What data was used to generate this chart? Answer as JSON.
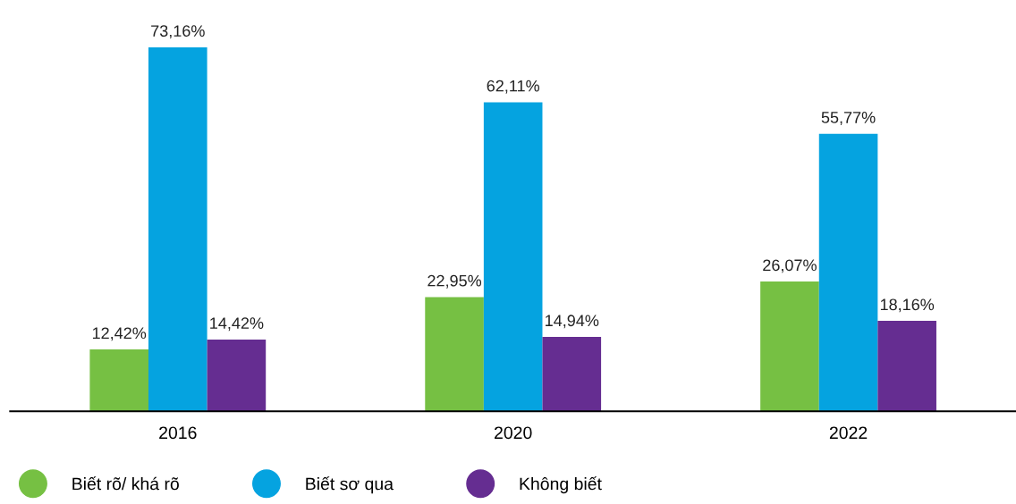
{
  "chart_data": {
    "type": "bar",
    "categories": [
      "2016",
      "2020",
      "2022"
    ],
    "series": [
      {
        "name": "Biết rõ/ khá rõ",
        "color": "#76c043",
        "values": [
          12.42,
          22.95,
          26.07
        ],
        "value_labels": [
          "12,42%",
          "22,95%",
          "26,07%"
        ]
      },
      {
        "name": "Biết sơ qua",
        "color": "#05a3e0",
        "values": [
          73.16,
          62.11,
          55.77
        ],
        "value_labels": [
          "73,16%",
          "62,11%",
          "55,77%"
        ]
      },
      {
        "name": "Không biết",
        "color": "#652d91",
        "values": [
          14.42,
          14.94,
          18.16
        ],
        "value_labels": [
          "14,42%",
          "14,94%",
          "18,16%"
        ]
      }
    ],
    "grid": false,
    "legend": "bottom left"
  }
}
